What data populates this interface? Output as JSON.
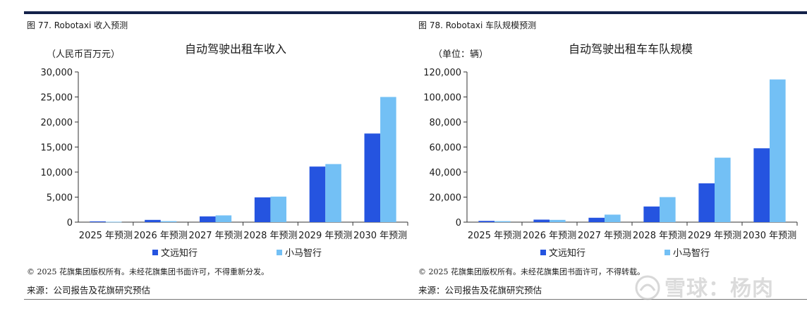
{
  "colors": {
    "series1": "#2554e0",
    "series2": "#73c0f5",
    "axis": "#333333",
    "rule": "#14214a"
  },
  "chart_data": [
    {
      "type": "bar",
      "figure_label": "图 77. Robotaxi 收入预测",
      "title": "自动驾驶出租车收入",
      "ylabel": "（人民币百万元）",
      "categories": [
        "2025 年预测",
        "2026 年预测",
        "2027 年预测",
        "2028 年预测",
        "2029 年预测",
        "2030 年预测"
      ],
      "ylim": [
        0,
        30000
      ],
      "yticks": [
        "0",
        "5,000",
        "10,000",
        "15,000",
        "20,000",
        "25,000",
        "30,000"
      ],
      "grid": false,
      "legend_position": "bottom",
      "series": [
        {
          "name": "文远知行",
          "values": [
            150,
            450,
            1150,
            4950,
            11100,
            17700
          ]
        },
        {
          "name": "小马智行",
          "values": [
            80,
            200,
            1350,
            5100,
            11600,
            25000
          ]
        }
      ],
      "copyright": "© 2025 花旗集团版权所有。未经花旗集团书面许可，不得重新分发。",
      "source": "来源：公司报告及花旗研究预估"
    },
    {
      "type": "bar",
      "figure_label": "图 78. Robotaxi 车队规模预测",
      "title": "自动驾驶出租车车队规模",
      "ylabel": "（单位：辆）",
      "categories": [
        "2025 年预测",
        "2026 年预测",
        "2027 年预测",
        "2028 年预测",
        "2029 年预测",
        "2030 年预测"
      ],
      "ylim": [
        0,
        120000
      ],
      "yticks": [
        "0",
        "20,000",
        "40,000",
        "60,000",
        "80,000",
        "100,000",
        "120,000"
      ],
      "grid": false,
      "legend_position": "bottom",
      "series": [
        {
          "name": "文远知行",
          "values": [
            1000,
            2000,
            3500,
            12500,
            31000,
            59000
          ]
        },
        {
          "name": "小马智行",
          "values": [
            800,
            1800,
            6000,
            20000,
            51500,
            114000
          ]
        }
      ],
      "copyright": "© 2025 花旗集团版权所有。未经花旗集团书面许可，不得转载。",
      "source": "来源：公司报告及花旗研究预估"
    }
  ],
  "watermark": "雪球：杨肉"
}
